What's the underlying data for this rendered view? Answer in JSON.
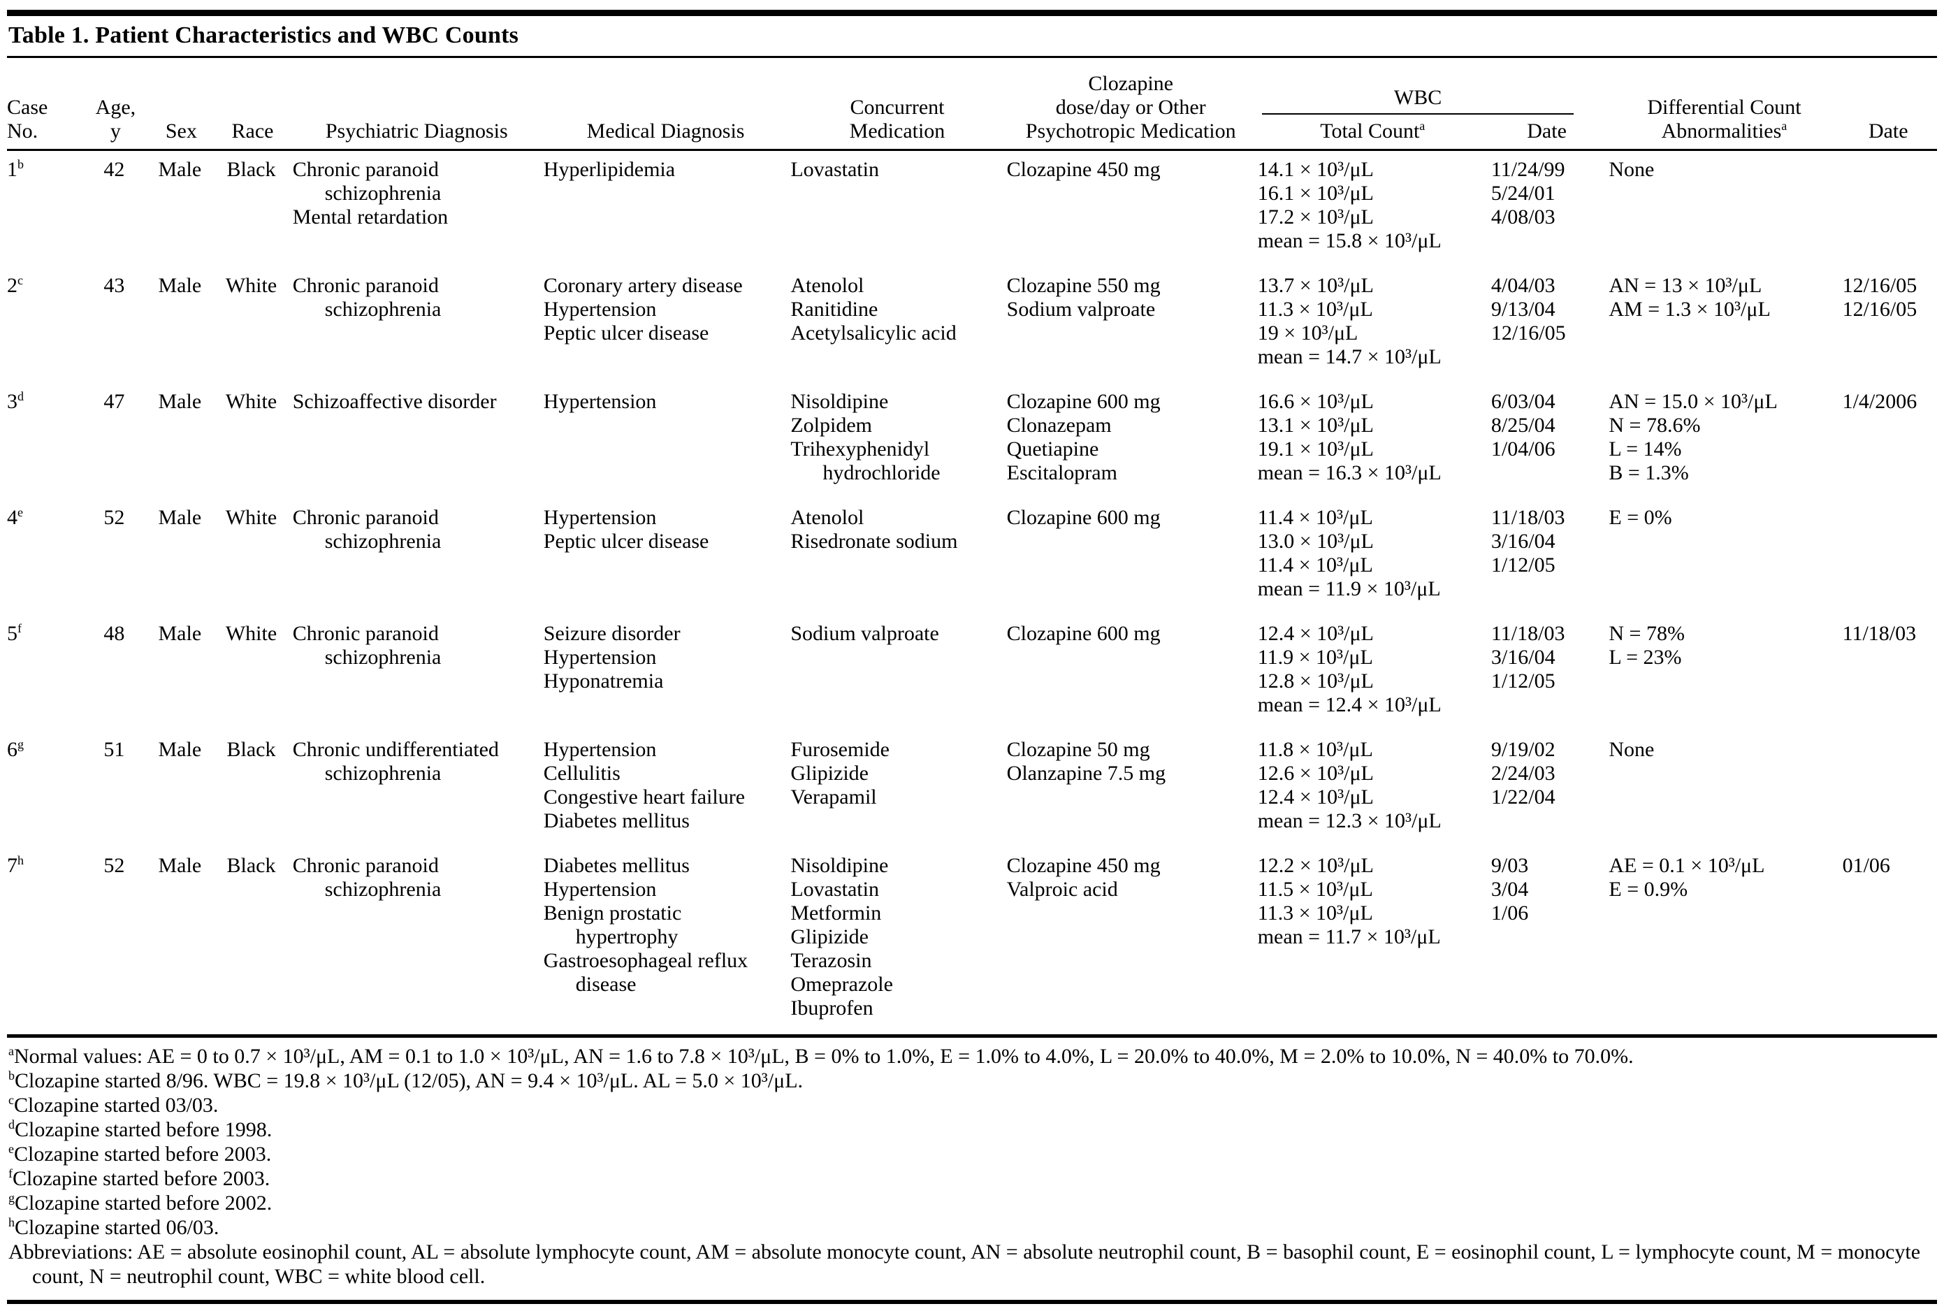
{
  "title": "Table 1. Patient Characteristics and WBC Counts",
  "table": {
    "columns": {
      "case_no": [
        "Case",
        "No."
      ],
      "age": [
        "Age,",
        "y"
      ],
      "sex": "Sex",
      "race": "Race",
      "psychiatric": "Psychiatric Diagnosis",
      "medical": "Medical Diagnosis",
      "concurrent": [
        "Concurrent",
        "Medication"
      ],
      "clozapine": [
        "Clozapine",
        "dose/day or Other",
        "Psychotropic Medication"
      ],
      "wbc_group": "WBC",
      "wbc_total": "Total Count",
      "wbc_total_mark": "a",
      "wbc_date": "Date",
      "differential": [
        "Differential Count",
        "Abnormalities"
      ],
      "differential_mark": "a",
      "differential_date": "Date"
    },
    "rows": [
      {
        "case_no": "1",
        "footnote_mark": "b",
        "age": "42",
        "sex": "Male",
        "race": "Black",
        "psychiatric_diagnosis": [
          "Chronic paranoid schizophrenia",
          "Mental retardation"
        ],
        "medical_diagnosis": [
          "Hyperlipidemia"
        ],
        "concurrent_medication": [
          "Lovastatin"
        ],
        "clozapine_or_other": [
          "Clozapine 450 mg"
        ],
        "wbc_total_counts": [
          "14.1 × 10³/μL",
          "16.1 × 10³/μL",
          "17.2 × 10³/μL",
          "mean = 15.8 × 10³/μL"
        ],
        "wbc_dates": [
          "11/24/99",
          "5/24/01",
          "4/08/03"
        ],
        "differential_abnormalities": [
          "None"
        ],
        "differential_dates": []
      },
      {
        "case_no": "2",
        "footnote_mark": "c",
        "age": "43",
        "sex": "Male",
        "race": "White",
        "psychiatric_diagnosis": [
          "Chronic paranoid schizophrenia"
        ],
        "medical_diagnosis": [
          "Coronary artery disease",
          "Hypertension",
          "Peptic ulcer disease"
        ],
        "concurrent_medication": [
          "Atenolol",
          "Ranitidine",
          "Acetylsalicylic acid"
        ],
        "clozapine_or_other": [
          "Clozapine 550 mg",
          "Sodium valproate"
        ],
        "wbc_total_counts": [
          "13.7 × 10³/μL",
          "11.3 × 10³/μL",
          "19 × 10³/μL",
          "mean = 14.7 × 10³/μL"
        ],
        "wbc_dates": [
          "4/04/03",
          "9/13/04",
          "12/16/05"
        ],
        "differential_abnormalities": [
          "AN = 13 × 10³/μL",
          "AM = 1.3 × 10³/μL"
        ],
        "differential_dates": [
          "12/16/05",
          "12/16/05"
        ]
      },
      {
        "case_no": "3",
        "footnote_mark": "d",
        "age": "47",
        "sex": "Male",
        "race": "White",
        "psychiatric_diagnosis": [
          "Schizoaffective disorder"
        ],
        "medical_diagnosis": [
          "Hypertension"
        ],
        "concurrent_medication": [
          "Nisoldipine",
          "Zolpidem",
          "Trihexyphenidyl hydrochloride"
        ],
        "clozapine_or_other": [
          "Clozapine 600 mg",
          "Clonazepam",
          "Quetiapine",
          "Escitalopram"
        ],
        "wbc_total_counts": [
          "16.6 × 10³/μL",
          "13.1 × 10³/μL",
          "19.1 × 10³/μL",
          "mean = 16.3 × 10³/μL"
        ],
        "wbc_dates": [
          "6/03/04",
          "8/25/04",
          "1/04/06"
        ],
        "differential_abnormalities": [
          "AN = 15.0 × 10³/μL",
          "N = 78.6%",
          "L = 14%",
          "B = 1.3%"
        ],
        "differential_dates": [
          "1/4/2006"
        ]
      },
      {
        "case_no": "4",
        "footnote_mark": "e",
        "age": "52",
        "sex": "Male",
        "race": "White",
        "psychiatric_diagnosis": [
          "Chronic paranoid schizophrenia"
        ],
        "medical_diagnosis": [
          "Hypertension",
          "Peptic ulcer disease"
        ],
        "concurrent_medication": [
          "Atenolol",
          "Risedronate sodium"
        ],
        "clozapine_or_other": [
          "Clozapine 600 mg"
        ],
        "wbc_total_counts": [
          "11.4 × 10³/μL",
          "13.0 × 10³/μL",
          "11.4 × 10³/μL",
          "mean = 11.9 × 10³/μL"
        ],
        "wbc_dates": [
          "11/18/03",
          "3/16/04",
          "1/12/05"
        ],
        "differential_abnormalities": [
          "E = 0%"
        ],
        "differential_dates": []
      },
      {
        "case_no": "5",
        "footnote_mark": "f",
        "age": "48",
        "sex": "Male",
        "race": "White",
        "psychiatric_diagnosis": [
          "Chronic paranoid schizophrenia"
        ],
        "medical_diagnosis": [
          "Seizure disorder",
          "Hypertension",
          "Hyponatremia"
        ],
        "concurrent_medication": [
          "Sodium valproate"
        ],
        "clozapine_or_other": [
          "Clozapine 600 mg"
        ],
        "wbc_total_counts": [
          "12.4 × 10³/μL",
          "11.9 × 10³/μL",
          "12.8 × 10³/μL",
          "mean = 12.4 × 10³/μL"
        ],
        "wbc_dates": [
          "11/18/03",
          "3/16/04",
          "1/12/05"
        ],
        "differential_abnormalities": [
          "N = 78%",
          "L = 23%"
        ],
        "differential_dates": [
          "11/18/03"
        ]
      },
      {
        "case_no": "6",
        "footnote_mark": "g",
        "age": "51",
        "sex": "Male",
        "race": "Black",
        "psychiatric_diagnosis": [
          "Chronic undifferentiated schizophrenia"
        ],
        "medical_diagnosis": [
          "Hypertension",
          "Cellulitis",
          "Congestive heart failure",
          "Diabetes mellitus"
        ],
        "concurrent_medication": [
          "Furosemide",
          "Glipizide",
          "Verapamil"
        ],
        "clozapine_or_other": [
          "Clozapine 50 mg",
          "Olanzapine 7.5 mg"
        ],
        "wbc_total_counts": [
          "11.8 × 10³/μL",
          "12.6 × 10³/μL",
          "12.4 × 10³/μL",
          "mean = 12.3 × 10³/μL"
        ],
        "wbc_dates": [
          "9/19/02",
          "2/24/03",
          "1/22/04"
        ],
        "differential_abnormalities": [
          "None"
        ],
        "differential_dates": []
      },
      {
        "case_no": "7",
        "footnote_mark": "h",
        "age": "52",
        "sex": "Male",
        "race": "Black",
        "psychiatric_diagnosis": [
          "Chronic paranoid schizophrenia"
        ],
        "medical_diagnosis": [
          "Diabetes mellitus",
          "Hypertension",
          "Benign prostatic hypertrophy",
          "Gastroesophageal reflux disease"
        ],
        "concurrent_medication": [
          "Nisoldipine",
          "Lovastatin",
          "Metformin",
          "Glipizide",
          "Terazosin",
          "Omeprazole",
          "Ibuprofen"
        ],
        "clozapine_or_other": [
          "Clozapine 450 mg",
          "Valproic acid"
        ],
        "wbc_total_counts": [
          "12.2 × 10³/μL",
          "11.5 × 10³/μL",
          "11.3 × 10³/μL",
          "mean = 11.7 × 10³/μL"
        ],
        "wbc_dates": [
          "9/03",
          "3/04",
          "1/06"
        ],
        "differential_abnormalities": [
          "AE = 0.1 × 10³/μL",
          "E = 0.9%"
        ],
        "differential_dates": [
          "01/06"
        ]
      }
    ]
  },
  "footnotes": [
    {
      "mark": "a",
      "text": "Normal values: AE = 0 to 0.7 × 10³/μL, AM = 0.1 to 1.0 × 10³/μL, AN = 1.6 to 7.8 × 10³/μL, B = 0% to 1.0%, E = 1.0% to 4.0%, L = 20.0% to 40.0%, M = 2.0% to 10.0%, N = 40.0% to 70.0%."
    },
    {
      "mark": "b",
      "text": "Clozapine started 8/96. WBC = 19.8 × 10³/μL (12/05), AN = 9.4 × 10³/μL. AL = 5.0 × 10³/μL."
    },
    {
      "mark": "c",
      "text": "Clozapine started 03/03."
    },
    {
      "mark": "d",
      "text": "Clozapine started before 1998."
    },
    {
      "mark": "e",
      "text": "Clozapine started before 2003."
    },
    {
      "mark": "f",
      "text": "Clozapine started before 2003."
    },
    {
      "mark": "g",
      "text": "Clozapine started before 2002."
    },
    {
      "mark": "h",
      "text": "Clozapine started 06/03."
    },
    {
      "mark": "",
      "text": "Abbreviations: AE = absolute eosinophil count, AL = absolute lymphocyte count, AM = absolute monocyte count, AN = absolute neutrophil count, B = basophil count, E = eosinophil count, L = lymphocyte count, M = monocyte count, N = neutrophil count, WBC = white blood cell."
    }
  ]
}
